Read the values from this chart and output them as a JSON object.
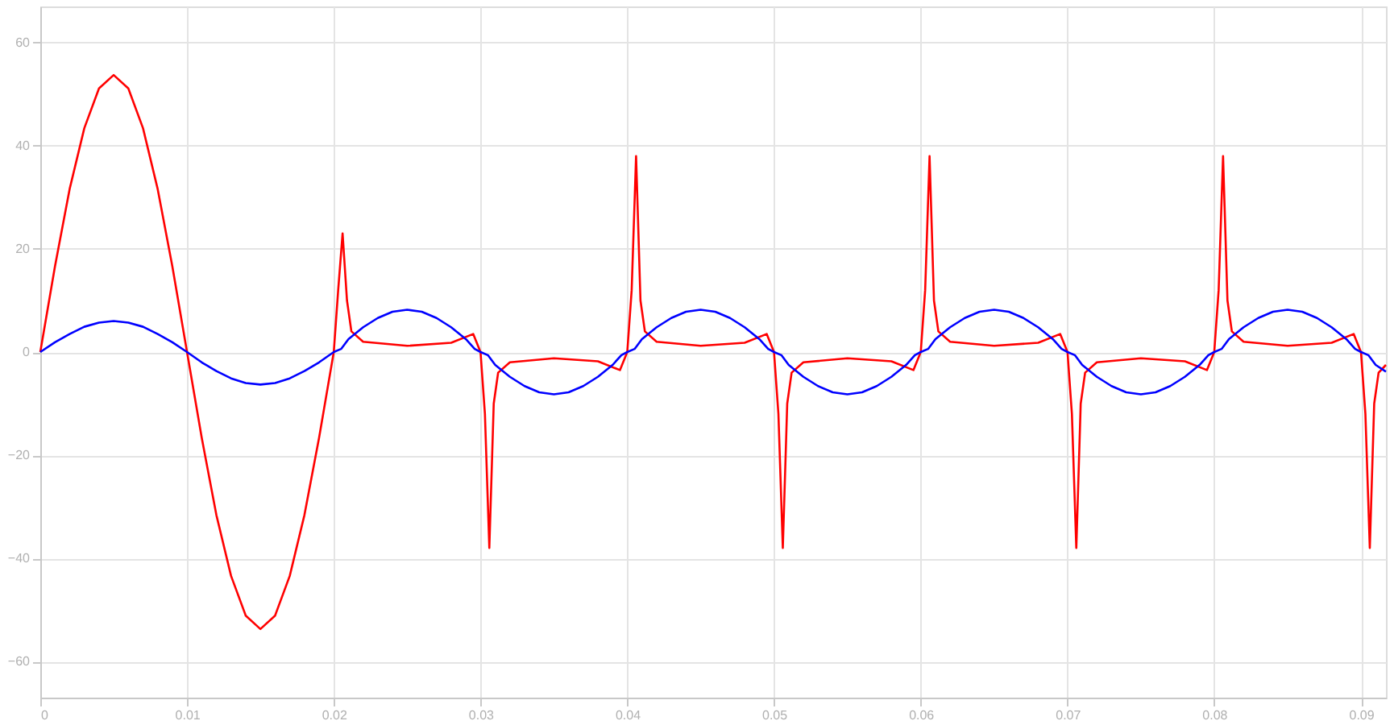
{
  "chart_data": {
    "type": "line",
    "xlim": [
      0,
      0.0917
    ],
    "ylim": [
      -67,
      67
    ],
    "xticks": [
      0,
      0.01,
      0.02,
      0.03,
      0.04,
      0.05,
      0.06,
      0.07,
      0.08,
      0.09
    ],
    "yticks": [
      -60,
      -40,
      -20,
      0,
      20,
      40,
      60
    ],
    "grid": true,
    "marker": "none",
    "line_style": "solid",
    "series": [
      {
        "color": "#ff0000",
        "x": [
          0,
          0.001,
          0.002,
          0.003,
          0.004,
          0.005,
          0.006,
          0.007,
          0.008,
          0.009,
          0.01,
          0.011,
          0.012,
          0.013,
          0.014,
          0.015,
          0.016,
          0.017,
          0.018,
          0.019,
          0.02,
          0.0203,
          0.0206,
          0.0209,
          0.0212,
          0.022,
          0.025,
          0.028,
          0.0295,
          0.03,
          0.0303,
          0.0306,
          0.0309,
          0.0312,
          0.032,
          0.035,
          0.038,
          0.0395,
          0.04,
          0.0403,
          0.0406,
          0.0409,
          0.0412,
          0.042,
          0.045,
          0.048,
          0.0495,
          0.05,
          0.0503,
          0.0506,
          0.0509,
          0.0512,
          0.052,
          0.055,
          0.058,
          0.0595,
          0.06,
          0.0603,
          0.0606,
          0.0609,
          0.0612,
          0.062,
          0.065,
          0.068,
          0.0695,
          0.07,
          0.0703,
          0.0706,
          0.0709,
          0.0712,
          0.072,
          0.075,
          0.078,
          0.0795,
          0.08,
          0.0803,
          0.0806,
          0.0809,
          0.0812,
          0.082,
          0.085,
          0.088,
          0.0895,
          0.09,
          0.0903,
          0.0906,
          0.0909,
          0.0912,
          0.0917
        ],
        "values": [
          0,
          16.6,
          31.6,
          43.4,
          51.1,
          53.7,
          51.1,
          43.4,
          31.6,
          16.6,
          0,
          -16.6,
          -31.6,
          -43.4,
          -51.1,
          -53.7,
          -51.1,
          -43.4,
          -31.6,
          -16.6,
          0,
          12,
          23,
          10,
          4,
          2,
          1.2,
          1.8,
          3.5,
          0,
          -12,
          -38,
          -10,
          -4,
          -2,
          -1.2,
          -1.8,
          -3.5,
          0,
          12,
          38,
          10,
          4,
          2,
          1.2,
          1.8,
          3.5,
          0,
          -12,
          -38,
          -10,
          -4,
          -2,
          -1.2,
          -1.8,
          -3.5,
          0,
          12,
          38,
          10,
          4,
          2,
          1.2,
          1.8,
          3.5,
          0,
          -12,
          -38,
          -10,
          -4,
          -2,
          -1.2,
          -1.8,
          -3.5,
          0,
          12,
          38,
          10,
          4,
          2,
          1.2,
          1.8,
          3.5,
          0,
          -12,
          -38,
          -10,
          -4,
          -2.5
        ]
      },
      {
        "color": "#0000ff",
        "x": [
          0,
          0.001,
          0.002,
          0.003,
          0.004,
          0.005,
          0.006,
          0.007,
          0.008,
          0.009,
          0.01,
          0.011,
          0.012,
          0.013,
          0.014,
          0.015,
          0.016,
          0.017,
          0.018,
          0.019,
          0.02,
          0.0205,
          0.021,
          0.022,
          0.023,
          0.024,
          0.025,
          0.026,
          0.027,
          0.028,
          0.029,
          0.0296,
          0.03,
          0.0305,
          0.031,
          0.032,
          0.033,
          0.034,
          0.035,
          0.036,
          0.037,
          0.038,
          0.039,
          0.0396,
          0.04,
          0.0405,
          0.041,
          0.042,
          0.043,
          0.044,
          0.045,
          0.046,
          0.047,
          0.048,
          0.049,
          0.0496,
          0.05,
          0.0505,
          0.051,
          0.052,
          0.053,
          0.054,
          0.055,
          0.056,
          0.057,
          0.058,
          0.059,
          0.0596,
          0.06,
          0.0605,
          0.061,
          0.062,
          0.063,
          0.064,
          0.065,
          0.066,
          0.067,
          0.068,
          0.069,
          0.0696,
          0.07,
          0.0705,
          0.071,
          0.072,
          0.073,
          0.074,
          0.075,
          0.076,
          0.077,
          0.078,
          0.079,
          0.0796,
          0.08,
          0.0805,
          0.081,
          0.082,
          0.083,
          0.084,
          0.085,
          0.086,
          0.087,
          0.088,
          0.089,
          0.0896,
          0.09,
          0.0905,
          0.091,
          0.0917
        ],
        "values": [
          0,
          1.9,
          3.5,
          4.9,
          5.7,
          6,
          5.7,
          4.9,
          3.5,
          1.9,
          0,
          -2,
          -3.7,
          -5.1,
          -6,
          -6.3,
          -6,
          -5.1,
          -3.7,
          -2,
          0,
          0.6,
          2.5,
          4.8,
          6.6,
          7.8,
          8.2,
          7.8,
          6.6,
          4.8,
          2.5,
          0.6,
          0,
          -0.6,
          -2.5,
          -4.8,
          -6.6,
          -7.8,
          -8.2,
          -7.8,
          -6.6,
          -4.8,
          -2.5,
          -0.6,
          0,
          0.6,
          2.5,
          4.8,
          6.6,
          7.8,
          8.2,
          7.8,
          6.6,
          4.8,
          2.5,
          0.6,
          0,
          -0.6,
          -2.5,
          -4.8,
          -6.6,
          -7.8,
          -8.2,
          -7.8,
          -6.6,
          -4.8,
          -2.5,
          -0.6,
          0,
          0.6,
          2.5,
          4.8,
          6.6,
          7.8,
          8.2,
          7.8,
          6.6,
          4.8,
          2.5,
          0.6,
          0,
          -0.6,
          -2.5,
          -4.8,
          -6.6,
          -7.8,
          -8.2,
          -7.8,
          -6.6,
          -4.8,
          -2.5,
          -0.6,
          0,
          0.6,
          2.5,
          4.8,
          6.6,
          7.8,
          8.2,
          7.8,
          6.6,
          4.8,
          2.5,
          0.6,
          0,
          -0.6,
          -2.5,
          -3.8
        ]
      }
    ]
  }
}
